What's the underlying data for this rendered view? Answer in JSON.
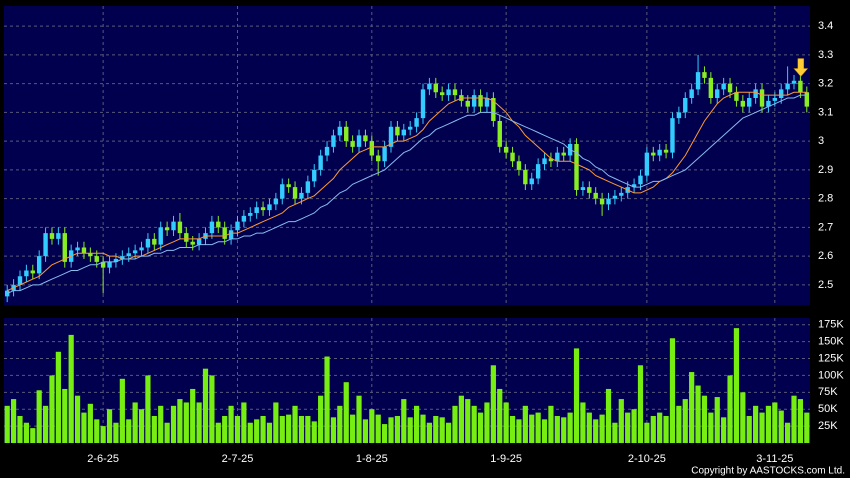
{
  "chart_data": [
    {
      "type": "candlestick",
      "categories": [
        null,
        null,
        null,
        null,
        null,
        null,
        null,
        null,
        null,
        null,
        null,
        null,
        null,
        null,
        null,
        "2-6-25",
        null,
        null,
        null,
        null,
        null,
        null,
        null,
        null,
        null,
        null,
        null,
        null,
        null,
        null,
        null,
        null,
        null,
        null,
        null,
        null,
        "2-7-25",
        null,
        null,
        null,
        null,
        null,
        null,
        null,
        null,
        null,
        null,
        null,
        null,
        null,
        null,
        null,
        null,
        null,
        null,
        null,
        null,
        "1-8-25",
        null,
        null,
        null,
        null,
        null,
        null,
        null,
        null,
        null,
        null,
        null,
        null,
        null,
        null,
        null,
        null,
        null,
        null,
        null,
        null,
        "1-9-25",
        null,
        null,
        null,
        null,
        null,
        null,
        null,
        null,
        null,
        null,
        null,
        null,
        null,
        null,
        null,
        null,
        null,
        null,
        null,
        null,
        null,
        "2-10-25",
        null,
        null,
        null,
        null,
        null,
        null,
        null,
        null,
        null,
        null,
        null,
        null,
        null,
        null,
        null,
        null,
        null,
        null,
        null,
        "3-11-25",
        null,
        null,
        null,
        null,
        null
      ],
      "open": [
        2.46,
        2.48,
        2.5,
        2.53,
        2.55,
        2.54,
        2.6,
        2.68,
        2.66,
        2.68,
        2.58,
        2.62,
        2.63,
        2.61,
        2.6,
        2.58,
        2.56,
        2.58,
        2.59,
        2.6,
        2.61,
        2.62,
        2.63,
        2.66,
        2.64,
        2.7,
        2.69,
        2.72,
        2.68,
        2.65,
        2.64,
        2.66,
        2.68,
        2.72,
        2.7,
        2.66,
        2.69,
        2.72,
        2.74,
        2.75,
        2.77,
        2.76,
        2.78,
        2.8,
        2.85,
        2.84,
        2.8,
        2.82,
        2.86,
        2.9,
        2.95,
        2.98,
        3.02,
        3.05,
        3.0,
        2.98,
        3.02,
        3.0,
        2.95,
        2.93,
        2.98,
        3.05,
        3.02,
        3.04,
        3.05,
        3.08,
        3.18,
        3.2,
        3.17,
        3.16,
        3.18,
        3.16,
        3.14,
        3.12,
        3.16,
        3.12,
        3.15,
        3.07,
        2.98,
        2.96,
        2.93,
        2.9,
        2.85,
        2.87,
        2.92,
        2.94,
        2.93,
        2.96,
        2.95,
        2.99,
        2.83,
        2.84,
        2.82,
        2.8,
        2.78,
        2.8,
        2.81,
        2.82,
        2.84,
        2.85,
        2.88,
        2.96,
        2.95,
        2.97,
        2.96,
        3.08,
        3.1,
        3.15,
        3.18,
        3.24,
        3.22,
        3.15,
        3.18,
        3.2,
        3.17,
        3.14,
        3.12,
        3.15,
        3.18,
        3.12,
        3.14,
        3.15,
        3.18,
        3.2,
        3.21,
        3.17
      ],
      "high": [
        2.5,
        2.52,
        2.55,
        2.57,
        2.57,
        2.62,
        2.7,
        2.7,
        2.7,
        2.7,
        2.64,
        2.65,
        2.65,
        2.63,
        2.62,
        2.6,
        2.6,
        2.61,
        2.62,
        2.63,
        2.64,
        2.65,
        2.68,
        2.68,
        2.72,
        2.72,
        2.74,
        2.75,
        2.7,
        2.67,
        2.68,
        2.7,
        2.74,
        2.74,
        2.72,
        2.71,
        2.74,
        2.76,
        2.77,
        2.79,
        2.79,
        2.8,
        2.82,
        2.87,
        2.87,
        2.86,
        2.84,
        2.88,
        2.92,
        2.97,
        3.0,
        3.04,
        3.07,
        3.07,
        3.02,
        3.04,
        3.04,
        3.02,
        2.97,
        3.0,
        3.07,
        3.07,
        3.06,
        3.07,
        3.1,
        3.2,
        3.22,
        3.22,
        3.19,
        3.2,
        3.2,
        3.18,
        3.16,
        3.18,
        3.18,
        3.17,
        3.17,
        3.09,
        3.0,
        2.98,
        2.95,
        2.92,
        2.89,
        2.94,
        2.96,
        2.96,
        2.98,
        2.98,
        3.01,
        3.01,
        2.86,
        2.86,
        2.84,
        2.82,
        2.82,
        2.83,
        2.84,
        2.86,
        2.87,
        2.9,
        2.98,
        2.98,
        2.99,
        2.99,
        3.1,
        3.12,
        3.17,
        3.2,
        3.3,
        3.26,
        3.24,
        3.2,
        3.22,
        3.22,
        3.19,
        3.16,
        3.17,
        3.2,
        3.2,
        3.16,
        3.17,
        3.2,
        3.26,
        3.23,
        3.23,
        3.19
      ],
      "low": [
        2.44,
        2.46,
        2.48,
        2.51,
        2.52,
        2.52,
        2.58,
        2.64,
        2.64,
        2.56,
        2.56,
        2.6,
        2.59,
        2.58,
        2.56,
        2.47,
        2.54,
        2.56,
        2.57,
        2.58,
        2.59,
        2.6,
        2.61,
        2.62,
        2.62,
        2.67,
        2.67,
        2.66,
        2.63,
        2.62,
        2.62,
        2.64,
        2.66,
        2.68,
        2.64,
        2.64,
        2.67,
        2.7,
        2.72,
        2.73,
        2.74,
        2.74,
        2.76,
        2.78,
        2.82,
        2.78,
        2.78,
        2.8,
        2.84,
        2.88,
        2.93,
        2.96,
        3.0,
        2.98,
        2.96,
        2.96,
        2.98,
        2.93,
        2.88,
        2.91,
        2.96,
        3.0,
        3.0,
        3.02,
        3.03,
        3.06,
        3.16,
        3.15,
        3.14,
        3.14,
        3.14,
        3.12,
        3.1,
        3.1,
        3.1,
        3.1,
        3.05,
        2.96,
        2.94,
        2.91,
        2.88,
        2.83,
        2.83,
        2.85,
        2.9,
        2.91,
        2.91,
        2.93,
        2.93,
        2.81,
        2.81,
        2.8,
        2.78,
        2.74,
        2.76,
        2.78,
        2.79,
        2.8,
        2.82,
        2.83,
        2.86,
        2.93,
        2.93,
        2.94,
        2.94,
        3.06,
        3.08,
        3.13,
        3.16,
        3.2,
        3.13,
        3.13,
        3.16,
        3.15,
        3.12,
        3.1,
        3.1,
        3.13,
        3.1,
        3.1,
        3.12,
        3.13,
        3.16,
        3.18,
        3.15,
        3.1
      ],
      "close": [
        2.48,
        2.5,
        2.53,
        2.55,
        2.54,
        2.6,
        2.68,
        2.66,
        2.68,
        2.58,
        2.62,
        2.63,
        2.61,
        2.6,
        2.58,
        2.56,
        2.58,
        2.59,
        2.6,
        2.61,
        2.62,
        2.63,
        2.66,
        2.64,
        2.7,
        2.69,
        2.72,
        2.68,
        2.65,
        2.64,
        2.66,
        2.68,
        2.72,
        2.7,
        2.66,
        2.69,
        2.72,
        2.74,
        2.75,
        2.77,
        2.76,
        2.78,
        2.8,
        2.85,
        2.84,
        2.8,
        2.82,
        2.86,
        2.9,
        2.95,
        2.98,
        3.02,
        3.05,
        3.0,
        2.98,
        3.02,
        3.0,
        2.95,
        2.93,
        2.98,
        3.05,
        3.02,
        3.04,
        3.05,
        3.08,
        3.18,
        3.2,
        3.17,
        3.16,
        3.18,
        3.16,
        3.14,
        3.12,
        3.16,
        3.12,
        3.15,
        3.07,
        2.98,
        2.96,
        2.93,
        2.9,
        2.85,
        2.87,
        2.92,
        2.94,
        2.93,
        2.96,
        2.95,
        2.99,
        2.83,
        2.84,
        2.82,
        2.8,
        2.78,
        2.8,
        2.81,
        2.82,
        2.84,
        2.85,
        2.88,
        2.96,
        2.95,
        2.97,
        2.96,
        3.08,
        3.1,
        3.15,
        3.18,
        3.24,
        3.22,
        3.15,
        3.18,
        3.2,
        3.17,
        3.14,
        3.12,
        3.15,
        3.18,
        3.12,
        3.14,
        3.15,
        3.18,
        3.2,
        3.21,
        3.17,
        3.12
      ],
      "up_color": "#33ccff",
      "down_color": "#88ee22",
      "series": [
        {
          "color": "#ff9933",
          "values": [
            2.48,
            2.49,
            2.5,
            2.51,
            2.52,
            2.53,
            2.55,
            2.57,
            2.58,
            2.59,
            2.6,
            2.61,
            2.61,
            2.61,
            2.61,
            2.61,
            2.6,
            2.6,
            2.59,
            2.59,
            2.6,
            2.6,
            2.61,
            2.62,
            2.63,
            2.64,
            2.65,
            2.66,
            2.66,
            2.66,
            2.66,
            2.67,
            2.67,
            2.67,
            2.67,
            2.68,
            2.68,
            2.69,
            2.7,
            2.71,
            2.72,
            2.73,
            2.74,
            2.75,
            2.77,
            2.78,
            2.79,
            2.8,
            2.81,
            2.83,
            2.85,
            2.87,
            2.9,
            2.92,
            2.94,
            2.96,
            2.97,
            2.98,
            2.98,
            2.98,
            2.99,
            3.0,
            3.0,
            3.01,
            3.02,
            3.04,
            3.07,
            3.09,
            3.11,
            3.13,
            3.14,
            3.15,
            3.15,
            3.15,
            3.15,
            3.15,
            3.14,
            3.12,
            3.1,
            3.07,
            3.05,
            3.02,
            3.0,
            2.98,
            2.96,
            2.94,
            2.93,
            2.93,
            2.93,
            2.92,
            2.91,
            2.9,
            2.88,
            2.87,
            2.86,
            2.85,
            2.84,
            2.83,
            2.82,
            2.82,
            2.83,
            2.84,
            2.86,
            2.87,
            2.89,
            2.92,
            2.95,
            2.99,
            3.03,
            3.07,
            3.1,
            3.13,
            3.15,
            3.16,
            3.17,
            3.17,
            3.17,
            3.17,
            3.16,
            3.16,
            3.16,
            3.16,
            3.16,
            3.17,
            3.17,
            3.17
          ]
        },
        {
          "color": "#88bbee",
          "values": [
            2.47,
            2.48,
            2.48,
            2.49,
            2.5,
            2.5,
            2.51,
            2.52,
            2.53,
            2.54,
            2.55,
            2.55,
            2.56,
            2.57,
            2.57,
            2.58,
            2.58,
            2.58,
            2.59,
            2.59,
            2.59,
            2.6,
            2.6,
            2.61,
            2.61,
            2.62,
            2.62,
            2.63,
            2.63,
            2.63,
            2.64,
            2.64,
            2.64,
            2.65,
            2.65,
            2.66,
            2.66,
            2.67,
            2.67,
            2.68,
            2.68,
            2.69,
            2.7,
            2.71,
            2.72,
            2.72,
            2.73,
            2.74,
            2.75,
            2.77,
            2.78,
            2.8,
            2.82,
            2.83,
            2.85,
            2.86,
            2.87,
            2.88,
            2.89,
            2.9,
            2.92,
            2.94,
            2.96,
            2.97,
            2.99,
            3.01,
            3.02,
            3.04,
            3.05,
            3.06,
            3.07,
            3.08,
            3.09,
            3.09,
            3.1,
            3.1,
            3.1,
            3.09,
            3.08,
            3.07,
            3.06,
            3.05,
            3.04,
            3.03,
            3.02,
            3.01,
            3.0,
            2.99,
            2.97,
            2.96,
            2.94,
            2.93,
            2.91,
            2.9,
            2.88,
            2.87,
            2.86,
            2.85,
            2.84,
            2.84,
            2.85,
            2.86,
            2.86,
            2.87,
            2.88,
            2.89,
            2.9,
            2.92,
            2.94,
            2.96,
            2.98,
            3.0,
            3.02,
            3.04,
            3.06,
            3.08,
            3.09,
            3.1,
            3.11,
            3.12,
            3.13,
            3.14,
            3.15,
            3.15,
            3.16,
            3.16
          ]
        }
      ],
      "ylim": [
        2.43,
        3.47
      ],
      "yticks": [
        2.5,
        2.6,
        2.7,
        2.8,
        2.9,
        3,
        3.1,
        3.2,
        3.3,
        3.4
      ],
      "grid": true
    },
    {
      "type": "bar",
      "color": "#77ee11",
      "values": [
        55000,
        65000,
        40000,
        30000,
        22000,
        78000,
        55000,
        100000,
        135000,
        80000,
        160000,
        70000,
        45000,
        58000,
        35000,
        25000,
        50000,
        30000,
        95000,
        35000,
        60000,
        50000,
        100000,
        40000,
        55000,
        30000,
        55000,
        65000,
        60000,
        80000,
        60000,
        110000,
        100000,
        30000,
        40000,
        55000,
        40000,
        60000,
        30000,
        35000,
        40000,
        30000,
        60000,
        40000,
        42000,
        55000,
        40000,
        40000,
        32000,
        70000,
        128000,
        38000,
        55000,
        90000,
        42000,
        70000,
        35000,
        50000,
        42000,
        28000,
        38000,
        40000,
        65000,
        38000,
        55000,
        42000,
        30000,
        40000,
        38000,
        30000,
        55000,
        70000,
        65000,
        55000,
        45000,
        60000,
        115000,
        80000,
        60000,
        40000,
        35000,
        55000,
        42000,
        45000,
        35000,
        55000,
        40000,
        38000,
        45000,
        140000,
        60000,
        45000,
        35000,
        42000,
        80000,
        30000,
        65000,
        45000,
        50000,
        115000,
        30000,
        40000,
        45000,
        40000,
        155000,
        55000,
        65000,
        105000,
        85000,
        70000,
        45000,
        68000,
        38000,
        100000,
        170000,
        75000,
        40000,
        55000,
        45000,
        55000,
        60000,
        48000,
        30000,
        70000,
        65000,
        45000
      ],
      "ylim": [
        0,
        185000
      ],
      "yticks": [
        {
          "value": 25000,
          "label": "25K"
        },
        {
          "value": 50000,
          "label": "50K"
        },
        {
          "value": 75000,
          "label": "75K"
        },
        {
          "value": 100000,
          "label": "100K"
        },
        {
          "value": 125000,
          "label": "125K"
        },
        {
          "value": 150000,
          "label": "150K"
        },
        {
          "value": 175000,
          "label": "175K"
        }
      ],
      "grid": true
    }
  ],
  "footer": "Copyright by AASTOCKS.com Ltd."
}
